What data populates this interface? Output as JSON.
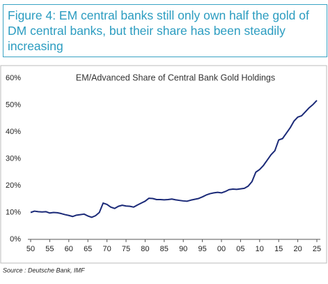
{
  "chart_data": {
    "type": "line",
    "title": "Figure 4: EM central banks still only own half the gold of DM central banks, but their share has been steadily increasing",
    "subtitle": "EM/Advanced Share of Central Bank Gold Holdings",
    "source": "Source : Deutsche Bank, IMF",
    "color": "#1b2a78",
    "x": [
      1950,
      1951,
      1952,
      1953,
      1954,
      1955,
      1956,
      1957,
      1958,
      1959,
      1960,
      1961,
      1962,
      1963,
      1964,
      1965,
      1966,
      1967,
      1968,
      1969,
      1970,
      1971,
      1972,
      1973,
      1974,
      1975,
      1976,
      1977,
      1978,
      1979,
      1980,
      1981,
      1982,
      1983,
      1984,
      1985,
      1986,
      1987,
      1988,
      1989,
      1990,
      1991,
      1992,
      1993,
      1994,
      1995,
      1996,
      1997,
      1998,
      1999,
      2000,
      2001,
      2002,
      2003,
      2004,
      2005,
      2006,
      2007,
      2008,
      2009,
      2010,
      2011,
      2012,
      2013,
      2014,
      2015,
      2016,
      2017,
      2018,
      2019,
      2020,
      2021,
      2022,
      2023,
      2024,
      2025
    ],
    "values": [
      10.0,
      10.5,
      10.3,
      10.2,
      10.3,
      9.8,
      10.0,
      9.9,
      9.6,
      9.2,
      8.9,
      8.5,
      9.0,
      9.2,
      9.4,
      8.7,
      8.2,
      8.8,
      10.0,
      13.5,
      13.0,
      12.0,
      11.5,
      12.3,
      12.7,
      12.4,
      12.3,
      12.0,
      12.8,
      13.5,
      14.2,
      15.3,
      15.2,
      14.8,
      14.8,
      14.7,
      14.8,
      15.0,
      14.7,
      14.5,
      14.3,
      14.2,
      14.6,
      14.9,
      15.2,
      15.8,
      16.5,
      17.0,
      17.3,
      17.5,
      17.3,
      17.8,
      18.5,
      18.7,
      18.6,
      18.8,
      19.0,
      19.8,
      21.5,
      25.0,
      26.0,
      27.5,
      29.5,
      31.5,
      33.0,
      37.0,
      37.5,
      39.5,
      41.5,
      44.0,
      45.5,
      46.0,
      47.5,
      49.0,
      50.2,
      51.7
    ],
    "xlim": [
      1950,
      2025
    ],
    "xticks": [
      {
        "value": 1950,
        "label": "50"
      },
      {
        "value": 1955,
        "label": "55"
      },
      {
        "value": 1960,
        "label": "60"
      },
      {
        "value": 1965,
        "label": "65"
      },
      {
        "value": 1970,
        "label": "70"
      },
      {
        "value": 1975,
        "label": "75"
      },
      {
        "value": 1980,
        "label": "80"
      },
      {
        "value": 1985,
        "label": "85"
      },
      {
        "value": 1990,
        "label": "90"
      },
      {
        "value": 1995,
        "label": "95"
      },
      {
        "value": 2000,
        "label": "00"
      },
      {
        "value": 2005,
        "label": "05"
      },
      {
        "value": 2010,
        "label": "10"
      },
      {
        "value": 2015,
        "label": "15"
      },
      {
        "value": 2020,
        "label": "20"
      },
      {
        "value": 2025,
        "label": "25"
      }
    ],
    "ylim": [
      0,
      60
    ],
    "yticks": [
      {
        "value": 0,
        "label": "0%"
      },
      {
        "value": 10,
        "label": "10%"
      },
      {
        "value": 20,
        "label": "20%"
      },
      {
        "value": 30,
        "label": "30%"
      },
      {
        "value": 40,
        "label": "40%"
      },
      {
        "value": 50,
        "label": "50%"
      },
      {
        "value": 60,
        "label": "60%"
      }
    ],
    "grid": false
  }
}
